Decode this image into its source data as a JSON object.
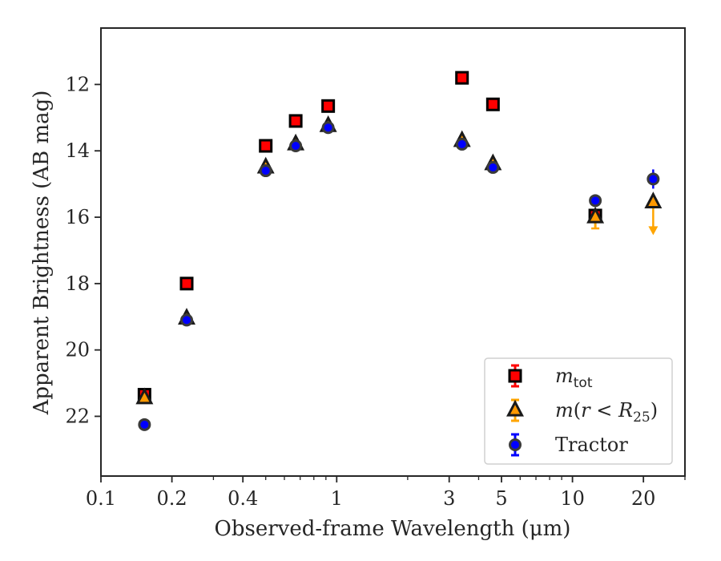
{
  "chart_data": {
    "type": "scatter",
    "title": "",
    "xlabel": "Observed-frame Wavelength (μm)",
    "ylabel": "Apparent Brightness (AB mag)",
    "xscale": "log",
    "xlim": [
      0.1,
      30
    ],
    "ylim": [
      23.8,
      10.3
    ],
    "y_inverted": true,
    "x_ticks": [
      0.1,
      0.2,
      0.4,
      1,
      3,
      5,
      10,
      20
    ],
    "x_tick_labels": [
      "0.1",
      "0.2",
      "0.4",
      "1",
      "3",
      "5",
      "10",
      "20"
    ],
    "y_ticks": [
      12,
      14,
      16,
      18,
      20,
      22
    ],
    "y_tick_labels": [
      "12",
      "14",
      "16",
      "18",
      "20",
      "22"
    ],
    "grid": false,
    "legend_position": "bottom-right",
    "series": [
      {
        "name": "m_tot",
        "legend_label": {
          "var": "m",
          "sub": "tot"
        },
        "marker": "square",
        "color": "#ff0000",
        "edge_color": "#000000",
        "errorbar_color": "#ff0000",
        "x": [
          0.153,
          0.231,
          0.5,
          0.67,
          0.92,
          3.4,
          4.6,
          12.5
        ],
        "y": [
          21.35,
          18.0,
          13.85,
          13.1,
          12.65,
          11.8,
          12.6,
          15.95
        ]
      },
      {
        "name": "m(r < R_25)",
        "legend_label": {
          "var": "m",
          "open": "(",
          "inner": "r < R",
          "sub": "25",
          "close": ")"
        },
        "marker": "triangle",
        "color": "#ff9900",
        "edge_color": "#1a1a1a",
        "errorbar_color": "#ffa500",
        "x": [
          0.153,
          0.231,
          0.5,
          0.67,
          0.92,
          3.4,
          4.6,
          12.5,
          22.0
        ],
        "y": [
          21.45,
          19.05,
          14.5,
          13.8,
          13.25,
          13.7,
          14.4,
          16.0,
          15.55
        ],
        "upper_limit_x": 22.0
      },
      {
        "name": "Tractor",
        "legend_label": {
          "text": "Tractor"
        },
        "marker": "circle",
        "color": "#0000ff",
        "edge_color": "#3a3a3a",
        "errorbar_color": "#0000ff",
        "x": [
          0.153,
          0.231,
          0.5,
          0.67,
          0.92,
          3.4,
          4.6,
          12.5,
          22.0
        ],
        "y": [
          22.25,
          19.1,
          14.6,
          13.85,
          13.3,
          13.8,
          14.5,
          15.5,
          14.85
        ]
      }
    ]
  }
}
